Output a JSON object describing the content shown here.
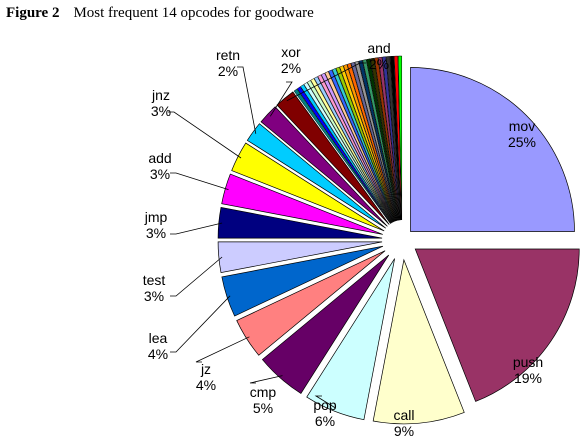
{
  "figure": {
    "label": "Figure 2",
    "title": "Most frequent 14 opcodes for goodware"
  },
  "chart_data": {
    "type": "pie",
    "title": "Most frequent 14 opcodes for goodware",
    "slices": [
      {
        "name": "mov",
        "value": 25,
        "label": "25%",
        "color": "#9999ff"
      },
      {
        "name": "push",
        "value": 19,
        "label": "19%",
        "color": "#993366"
      },
      {
        "name": "call",
        "value": 9,
        "label": "9%",
        "color": "#ffffcc"
      },
      {
        "name": "pop",
        "value": 6,
        "label": "6%",
        "color": "#ccffff"
      },
      {
        "name": "cmp",
        "value": 5,
        "label": "5%",
        "color": "#660066"
      },
      {
        "name": "jz",
        "value": 4,
        "label": "4%",
        "color": "#ff8080"
      },
      {
        "name": "lea",
        "value": 4,
        "label": "4%",
        "color": "#0066cc"
      },
      {
        "name": "test",
        "value": 3,
        "label": "3%",
        "color": "#ccccff"
      },
      {
        "name": "jmp",
        "value": 3,
        "label": "3%",
        "color": "#000080"
      },
      {
        "name": "add",
        "value": 3,
        "label": "3%",
        "color": "#ff00ff"
      },
      {
        "name": "jnz",
        "value": 3,
        "label": "3%",
        "color": "#ffff00"
      },
      {
        "name": "retn",
        "value": 2,
        "label": "2%",
        "color": "#00ccff"
      },
      {
        "name": "xor",
        "value": 2,
        "label": "2%",
        "color": "#800080"
      },
      {
        "name": "and",
        "value": 2,
        "label": "2%",
        "color": "#800000"
      }
    ],
    "other_slice_colors": [
      "#008080",
      "#0000ff",
      "#00ccff",
      "#ccffff",
      "#ccffcc",
      "#ffff99",
      "#99ccff",
      "#ff99cc",
      "#cc99ff",
      "#ffcc99",
      "#3366ff",
      "#33cccc",
      "#99cc00",
      "#ffcc00",
      "#ff9900",
      "#ff6600",
      "#666699",
      "#969696",
      "#003366",
      "#339966",
      "#003300",
      "#333300",
      "#993300",
      "#993366",
      "#333399",
      "#333333",
      "#000000",
      "#ff0000",
      "#00ff00"
    ],
    "exploded": true
  }
}
